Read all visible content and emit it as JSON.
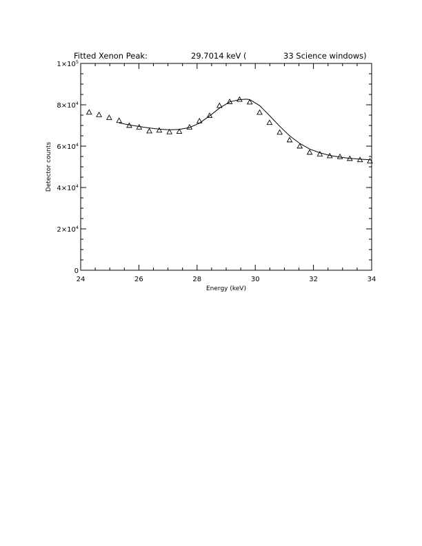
{
  "chart_data": {
    "type": "scatter",
    "title": {
      "left": "Fitted Xenon Peak:",
      "middle": "29.7014 keV (",
      "right": "33 Science windows)"
    },
    "xlabel": "Energy (keV)",
    "ylabel": "Detector counts",
    "xlim": [
      24,
      34
    ],
    "ylim": [
      0,
      100000
    ],
    "x_ticks": [
      {
        "value": 24,
        "label": "24"
      },
      {
        "value": 26,
        "label": "26"
      },
      {
        "value": 28,
        "label": "28"
      },
      {
        "value": 30,
        "label": "30"
      },
      {
        "value": 32,
        "label": "32"
      },
      {
        "value": 34,
        "label": "34"
      }
    ],
    "y_ticks": [
      {
        "value": 0,
        "base": "0",
        "exp": ""
      },
      {
        "value": 20000,
        "base": "2×10",
        "exp": "4"
      },
      {
        "value": 40000,
        "base": "4×10",
        "exp": "4"
      },
      {
        "value": 60000,
        "base": "6×10",
        "exp": "4"
      },
      {
        "value": 80000,
        "base": "8×10",
        "exp": "4"
      },
      {
        "value": 100000,
        "base": "1×10",
        "exp": "5"
      }
    ],
    "grid": false,
    "series": [
      {
        "kind": "data points",
        "marker": "triangle",
        "x": [
          24.29,
          24.63,
          24.98,
          25.32,
          25.67,
          26.01,
          26.36,
          26.7,
          27.05,
          27.39,
          27.74,
          28.08,
          28.43,
          28.77,
          29.12,
          29.46,
          29.81,
          30.15,
          30.49,
          30.84,
          31.18,
          31.53,
          31.87,
          32.22,
          32.56,
          32.91,
          33.25,
          33.6,
          33.94
        ],
        "y": [
          76400,
          75200,
          73800,
          72400,
          70000,
          69200,
          67300,
          67700,
          66900,
          67100,
          69200,
          72200,
          74800,
          79600,
          81500,
          82600,
          81300,
          76300,
          71400,
          66700,
          63000,
          60000,
          57000,
          56200,
          55300,
          54900,
          54000,
          53400,
          52800
        ]
      },
      {
        "kind": "fit",
        "line": "solid",
        "x": [
          25.32,
          25.67,
          26.01,
          26.36,
          26.7,
          27.05,
          27.39,
          27.74,
          28.08,
          28.43,
          28.77,
          29.12,
          29.46,
          29.7,
          29.81,
          30.15,
          30.49,
          30.84,
          31.18,
          31.53,
          31.87,
          32.22,
          32.56,
          32.91,
          33.25,
          33.6,
          33.94
        ],
        "y": [
          71200,
          70300,
          69500,
          68800,
          68200,
          67900,
          68100,
          69000,
          71100,
          74600,
          78400,
          81400,
          82500,
          82700,
          82500,
          79600,
          74800,
          69600,
          65000,
          61300,
          58600,
          56800,
          55500,
          54700,
          54100,
          53700,
          53400
        ]
      }
    ]
  }
}
